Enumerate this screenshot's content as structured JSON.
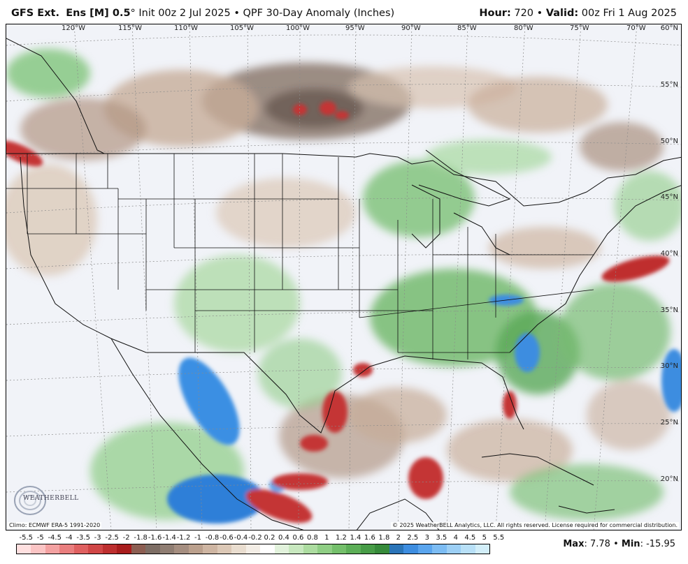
{
  "header": {
    "model": "GFS Ext.",
    "ensemble": "Ens [M] 0.5",
    "degree": "°",
    "init": "Init 00z 2 Jul 2025",
    "bullet": "•",
    "product": "QPF 30-Day Anomaly (Inches)",
    "hour_label": "Hour:",
    "hour_value": "720",
    "valid_label": "Valid:",
    "valid_value": "00z Fri 1 Aug 2025"
  },
  "map": {
    "lon_labels": [
      "120°W",
      "115°W",
      "110°W",
      "105°W",
      "100°W",
      "95°W",
      "90°W",
      "85°W",
      "80°W",
      "75°W",
      "70°W"
    ],
    "lat_labels": [
      "60°N",
      "55°N",
      "50°N",
      "45°N",
      "40°N",
      "35°N",
      "30°N",
      "25°N",
      "20°N"
    ],
    "climo": "Climo: ECMWF ERA-5 1991-2020",
    "copyright": "© 2025 WeatherBELL Analytics, LLC. All rights reserved. License required for commercial distribution.",
    "logo_text": "WEATHERBELL"
  },
  "legend": {
    "labels": [
      "-5.5",
      "-5",
      "-4.5",
      "-4",
      "-3.5",
      "-3",
      "-2.5",
      "-2",
      "-1.8",
      "-1.6",
      "-1.4",
      "-1.2",
      "-1",
      "-0.8",
      "-0.6",
      "-0.4",
      "-0.2",
      "0.2",
      "0.4",
      "0.6",
      "0.8",
      "1",
      "1.2",
      "1.4",
      "1.6",
      "1.8",
      "2",
      "2.5",
      "3",
      "3.5",
      "4",
      "4.5",
      "5",
      "5.5"
    ],
    "colors": [
      "#ffe0e0",
      "#fbc4c4",
      "#f3a1a1",
      "#e97e7e",
      "#df6060",
      "#d04646",
      "#bd2f2f",
      "#a81d1d",
      "#8c5e52",
      "#7d6d64",
      "#8f7d72",
      "#a58e80",
      "#bba08d",
      "#ceb5a2",
      "#dcc8b6",
      "#e9ddcf",
      "#f4eee6",
      "#ffffff",
      "#e2f2dc",
      "#c8e8bf",
      "#acdca0",
      "#8fce84",
      "#74bf6b",
      "#5cae57",
      "#479c47",
      "#368a3a",
      "#2a74b8",
      "#3d8de0",
      "#5aa5ee",
      "#7cbcf3",
      "#9ccff5",
      "#b8e0f7",
      "#d2eef9"
    ]
  },
  "maxmin": {
    "max_label": "Max",
    "max_value": "7.78",
    "min_label": "Min",
    "min_value": "-15.95"
  }
}
